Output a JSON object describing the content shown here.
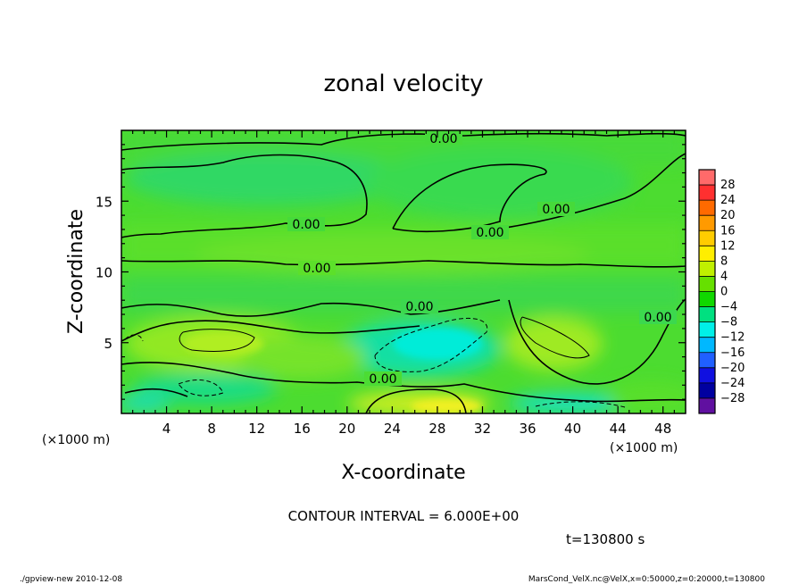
{
  "chart_data": {
    "type": "heatmap",
    "title": "zonal velocity",
    "xlabel": "X-coordinate",
    "ylabel": "Z-coordinate",
    "x_unit_label": "(×1000 m)",
    "y_unit_label": "(×1000 m)",
    "xlim": [
      0,
      50
    ],
    "ylim": [
      0,
      20
    ],
    "x_ticks": [
      "4",
      "8",
      "12",
      "16",
      "20",
      "24",
      "28",
      "32",
      "36",
      "40",
      "44",
      "48"
    ],
    "y_ticks": [
      "5",
      "10",
      "15"
    ],
    "colorbar": {
      "labels": [
        "28",
        "24",
        "20",
        "16",
        "12",
        "8",
        "4",
        "0",
        "−4",
        "−8",
        "−12",
        "−16",
        "−20",
        "−24",
        "−28"
      ],
      "colors": [
        "#ff6a6a",
        "#ff3030",
        "#ff6a00",
        "#ff9a00",
        "#ffcc00",
        "#ffee00",
        "#c0f000",
        "#66e000",
        "#10d800",
        "#00e080",
        "#00f0e8",
        "#00b8ff",
        "#2060ff",
        "#1010e0",
        "#0000a0",
        "#6010a0"
      ]
    },
    "contour_labels": [
      "0.00",
      "0.00",
      "0.00",
      "0.00",
      "0.00",
      "0.00",
      "0.00",
      "0.00"
    ],
    "contour_interval_text": "CONTOUR INTERVAL = 6.000E+00",
    "time_text": "t=130800 s",
    "footer_left": "./gpview-new  2010-12-08",
    "footer_right": "MarsCond_VelX.nc@VelX,x=0:50000,z=0:20000,t=130800",
    "background_color": "#4cdc30"
  }
}
